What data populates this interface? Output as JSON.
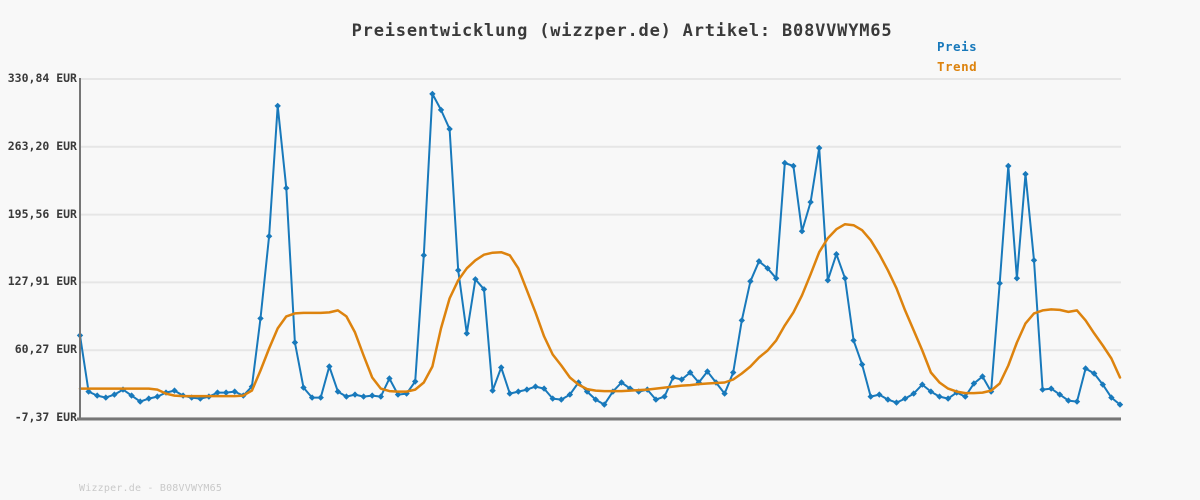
{
  "watermark": "Wizzper.de - B08VVWYM65",
  "colors": {
    "background": "#f8f8f8",
    "grid": "#e6e6e6",
    "axis": "#767676",
    "text": "#3a3a3a",
    "preis_blue": "#1879bb",
    "trend_orange": "#dd830e",
    "watermark_gray": "#c9c9c9"
  },
  "chart_data": {
    "type": "line",
    "title": "Preisentwicklung (wizzper.de) Artikel: B08VVWYM65",
    "xlabel": "",
    "ylabel": "",
    "x_tick_labels": [],
    "ylim": [
      -7.37,
      330.84
    ],
    "y_ticks": [
      330.84,
      263.2,
      195.56,
      127.91,
      60.27,
      -7.37
    ],
    "y_tick_labels": [
      "330,84 EUR",
      "263,20 EUR",
      "195,56 EUR",
      "127,91 EUR",
      "60,27 EUR",
      "-7,37 EUR"
    ],
    "grid": "horizontal",
    "legend": [
      "Preis",
      "Trend"
    ],
    "legend_position": "top-right",
    "unit": "EUR",
    "series": [
      {
        "name": "Preis",
        "color": "#1879bb",
        "marker": "diamond",
        "line_width": 2,
        "values": [
          75,
          19,
          15,
          13,
          16,
          21,
          15,
          9,
          12,
          14,
          18,
          20,
          15,
          13,
          12,
          14,
          18,
          18,
          19,
          15,
          24,
          92,
          174,
          304,
          222,
          68,
          23,
          13,
          13,
          44,
          19,
          14,
          16,
          14,
          15,
          14,
          32,
          16,
          17,
          29,
          155,
          316,
          300,
          281,
          140,
          77,
          131,
          121,
          20,
          43,
          17,
          19,
          21,
          24,
          22,
          12,
          11,
          16,
          28,
          19,
          11,
          6,
          19,
          28,
          22,
          19,
          21,
          11,
          14,
          33,
          31,
          38,
          28,
          39,
          28,
          17,
          38,
          90,
          129,
          149,
          142,
          132,
          247,
          244,
          179,
          208,
          262,
          130,
          156,
          132,
          70,
          46,
          14,
          16,
          11,
          8,
          12,
          17,
          26,
          19,
          14,
          12,
          18,
          14,
          27,
          34,
          19,
          127,
          244,
          132,
          236,
          150,
          21,
          22,
          16,
          10,
          9,
          42,
          37,
          26,
          13,
          6
        ]
      },
      {
        "name": "Trend",
        "color": "#dd830e",
        "marker": "none",
        "line_width": 2.5,
        "values": [
          22,
          22,
          22,
          22,
          22,
          22,
          22,
          22,
          22,
          21,
          17,
          15,
          14.5,
          14.5,
          14.5,
          14.5,
          14.5,
          14.5,
          14.5,
          15,
          20,
          40,
          62,
          82,
          94,
          97,
          97.5,
          97.5,
          97.5,
          98,
          100,
          94,
          78,
          55,
          33,
          22,
          19.5,
          19,
          19,
          21,
          28,
          44,
          82,
          112,
          130,
          142,
          150,
          155.5,
          157.5,
          158,
          155,
          142,
          120,
          98,
          74,
          56,
          45,
          33,
          26,
          21.5,
          20,
          19.5,
          19.5,
          19.5,
          20,
          20.5,
          21,
          22,
          23,
          24,
          25,
          25.5,
          26.5,
          27,
          27.5,
          28,
          31,
          37,
          44,
          53,
          60,
          70,
          85,
          98,
          115,
          136,
          158,
          172,
          181,
          186,
          185,
          180,
          170,
          156,
          140,
          122,
          100,
          80,
          60,
          38,
          28,
          22,
          19,
          17.5,
          17.5,
          18,
          20,
          27,
          45,
          68,
          87,
          97,
          100,
          101,
          100.5,
          98.5,
          100,
          90,
          77,
          65,
          52,
          33
        ]
      }
    ]
  }
}
